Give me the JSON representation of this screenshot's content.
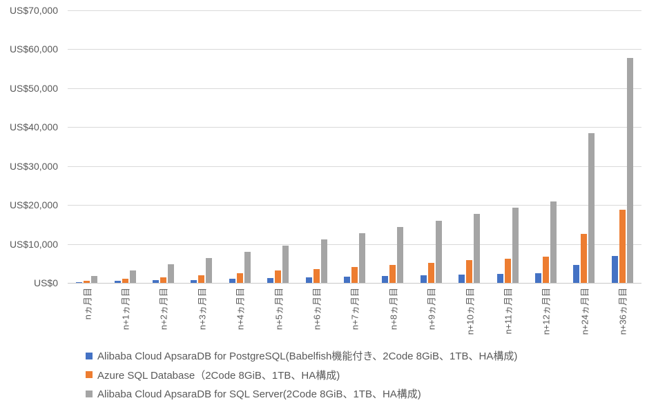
{
  "chart_data": {
    "type": "bar",
    "title": "",
    "xlabel": "",
    "ylabel": "",
    "ylim": [
      0,
      70000
    ],
    "ytick_step": 10000,
    "ytick_labels_top_to_bottom": [
      "US$70,000",
      "US$60,000",
      "US$50,000",
      "US$40,000",
      "US$30,000",
      "US$20,000",
      "US$10,000",
      "US$0"
    ],
    "grid": true,
    "legend_position": "bottom-left",
    "categories": [
      "nヵ月目",
      "n+1ヵ月目",
      "n+2ヵ月目",
      "n+3ヵ月目",
      "n+4ヵ月目",
      "n+5ヵ月目",
      "n+6ヵ月目",
      "n+7ヵ月目",
      "n+8ヵ月目",
      "n+9ヵ月目",
      "n+10ヵ月目",
      "n+11ヵ月目",
      "n+12ヵ月目",
      "n+24ヵ月目",
      "n+36ヵ月目"
    ],
    "series": [
      {
        "name": "Alibaba Cloud ApsaraDB for PostgreSQL(Babelfish機能付き、2Code 8GiB、1TB、HA構成)",
        "color": "#4472C4",
        "values": [
          250,
          450,
          650,
          800,
          1000,
          1200,
          1400,
          1550,
          1750,
          1900,
          2100,
          2250,
          2450,
          4550,
          6850
        ]
      },
      {
        "name": "Azure SQL Database（2Code 8GiB、1TB、HA構成)",
        "color": "#ED7D31",
        "values": [
          550,
          1000,
          1400,
          2000,
          2550,
          3200,
          3600,
          4150,
          4600,
          5150,
          5800,
          6250,
          6700,
          12500,
          18800
        ]
      },
      {
        "name": "Alibaba Cloud ApsaraDB for SQL Server(2Code 8GiB、1TB、HA構成)",
        "color": "#A5A5A5",
        "values": [
          1700,
          3200,
          4800,
          6400,
          8050,
          9600,
          11200,
          12850,
          14400,
          16000,
          17650,
          19350,
          20950,
          38450,
          57700
        ]
      }
    ],
    "colors": {
      "axis_text": "#595959",
      "gridline": "#D9D9D9",
      "axis_line": "#C9C9C9",
      "background": "#FFFFFF"
    }
  }
}
